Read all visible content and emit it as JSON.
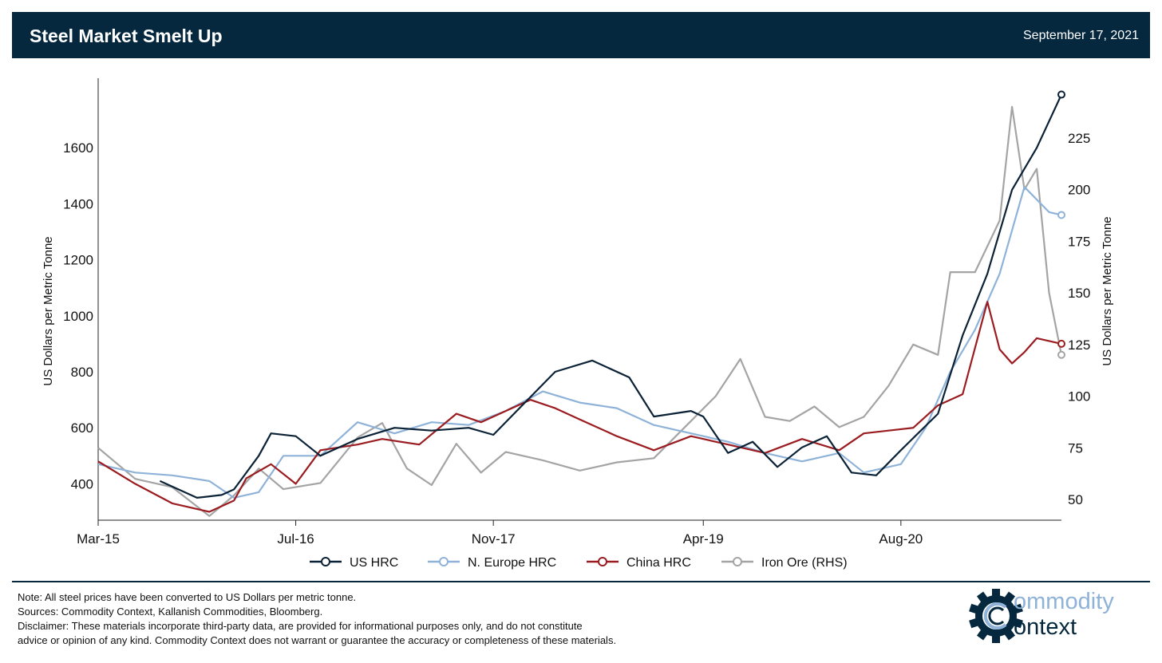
{
  "header": {
    "title": "Steel Market Smelt Up",
    "date": "September 17, 2021"
  },
  "colors": {
    "header_bg": "#05283e",
    "us_hrc": "#0b2236",
    "europe_hrc": "#8fb2d8",
    "china_hrc": "#9b1c20",
    "iron_ore": "#a4a4a4"
  },
  "chart_data": {
    "type": "line",
    "x_label_ticks": [
      "Mar-15",
      "Jul-16",
      "Nov-17",
      "Apr-19",
      "Aug-20"
    ],
    "x_tick_dates": [
      "2015-03",
      "2016-07",
      "2017-11",
      "2019-04",
      "2020-08"
    ],
    "x_range": [
      "2015-03",
      "2021-09"
    ],
    "ylabel_left": "US Dollars per Metric Tonne",
    "ylabel_right": "US Dollars per Metric Tonne",
    "y_left_range": [
      270,
      1820
    ],
    "y_left_ticks": [
      400,
      600,
      800,
      1000,
      1200,
      1400,
      1600
    ],
    "y_right_range": [
      40,
      250
    ],
    "y_right_ticks": [
      50,
      75,
      100,
      125,
      150,
      175,
      200,
      225
    ],
    "legend_position": "bottom",
    "series": [
      {
        "name": "US HRC",
        "axis": "left",
        "color": "#0b2236",
        "x": [
          "2015-08",
          "2015-11",
          "2016-01",
          "2016-02",
          "2016-04",
          "2016-05",
          "2016-07",
          "2016-09",
          "2016-12",
          "2017-03",
          "2017-06",
          "2017-09",
          "2017-11",
          "2018-02",
          "2018-04",
          "2018-07",
          "2018-10",
          "2018-12",
          "2019-03",
          "2019-04",
          "2019-06",
          "2019-08",
          "2019-10",
          "2019-12",
          "2020-02",
          "2020-04",
          "2020-06",
          "2020-08",
          "2020-11",
          "2021-01",
          "2021-03",
          "2021-05",
          "2021-07",
          "2021-09"
        ],
        "y": [
          410,
          350,
          360,
          380,
          500,
          580,
          570,
          500,
          560,
          600,
          590,
          600,
          575,
          710,
          800,
          840,
          780,
          640,
          660,
          640,
          510,
          550,
          460,
          530,
          570,
          440,
          430,
          520,
          650,
          930,
          1150,
          1450,
          1600,
          1790
        ]
      },
      {
        "name": "N. Europe HRC",
        "axis": "left",
        "color": "#8fb2d8",
        "x": [
          "2015-03",
          "2015-06",
          "2015-09",
          "2015-12",
          "2016-02",
          "2016-04",
          "2016-06",
          "2016-09",
          "2016-12",
          "2017-03",
          "2017-06",
          "2017-09",
          "2017-12",
          "2018-03",
          "2018-06",
          "2018-09",
          "2018-12",
          "2019-03",
          "2019-06",
          "2019-09",
          "2019-12",
          "2020-03",
          "2020-05",
          "2020-08",
          "2020-10",
          "2020-12",
          "2021-02",
          "2021-04",
          "2021-06",
          "2021-08",
          "2021-09"
        ],
        "y": [
          470,
          440,
          430,
          410,
          350,
          370,
          500,
          500,
          620,
          580,
          620,
          610,
          660,
          730,
          690,
          670,
          610,
          580,
          550,
          510,
          480,
          510,
          440,
          470,
          600,
          800,
          950,
          1150,
          1460,
          1370,
          1360
        ]
      },
      {
        "name": "China HRC",
        "axis": "left",
        "color": "#9b1c20",
        "x": [
          "2015-03",
          "2015-06",
          "2015-09",
          "2015-12",
          "2016-02",
          "2016-03",
          "2016-05",
          "2016-07",
          "2016-09",
          "2016-12",
          "2017-02",
          "2017-05",
          "2017-08",
          "2017-10",
          "2017-12",
          "2018-02",
          "2018-04",
          "2018-06",
          "2018-09",
          "2018-12",
          "2019-03",
          "2019-06",
          "2019-09",
          "2019-12",
          "2020-03",
          "2020-05",
          "2020-07",
          "2020-09",
          "2020-11",
          "2021-01",
          "2021-03",
          "2021-04",
          "2021-05",
          "2021-06",
          "2021-07",
          "2021-09"
        ],
        "y": [
          480,
          400,
          330,
          300,
          340,
          420,
          470,
          400,
          520,
          540,
          560,
          540,
          650,
          620,
          660,
          700,
          670,
          630,
          570,
          520,
          570,
          540,
          510,
          560,
          520,
          580,
          590,
          600,
          680,
          720,
          1050,
          880,
          830,
          870,
          920,
          900
        ]
      },
      {
        "name": "Iron Ore (RHS)",
        "axis": "right",
        "color": "#a4a4a4",
        "x": [
          "2015-03",
          "2015-06",
          "2015-09",
          "2015-12",
          "2016-02",
          "2016-04",
          "2016-06",
          "2016-09",
          "2016-12",
          "2017-02",
          "2017-04",
          "2017-06",
          "2017-08",
          "2017-10",
          "2017-12",
          "2018-03",
          "2018-06",
          "2018-09",
          "2018-12",
          "2019-03",
          "2019-05",
          "2019-07",
          "2019-09",
          "2019-11",
          "2020-01",
          "2020-03",
          "2020-05",
          "2020-07",
          "2020-09",
          "2020-11",
          "2020-12",
          "2021-02",
          "2021-04",
          "2021-05",
          "2021-06",
          "2021-07",
          "2021-08",
          "2021-09"
        ],
        "y": [
          75,
          60,
          56,
          42,
          52,
          65,
          55,
          58,
          80,
          87,
          65,
          57,
          77,
          63,
          73,
          69,
          64,
          68,
          70,
          88,
          100,
          118,
          90,
          88,
          95,
          85,
          90,
          105,
          125,
          120,
          160,
          160,
          185,
          240,
          200,
          210,
          150,
          120
        ]
      }
    ]
  },
  "notes": {
    "note": "Note: All steel prices have been converted to US Dollars per metric tonne.",
    "sources": "Sources: Commodity Context, Kallanish Commodities, Bloomberg.",
    "disclaimer_1": "Disclaimer: These materials incorporate third-party data, are provided for informational purposes only, and do not constitute",
    "disclaimer_2": "advice or opinion of any kind. Commodity Context does not warrant or guarantee the accuracy or completeness of these materials."
  },
  "logo": {
    "line1": "ommodity",
    "line2": "ontext"
  }
}
